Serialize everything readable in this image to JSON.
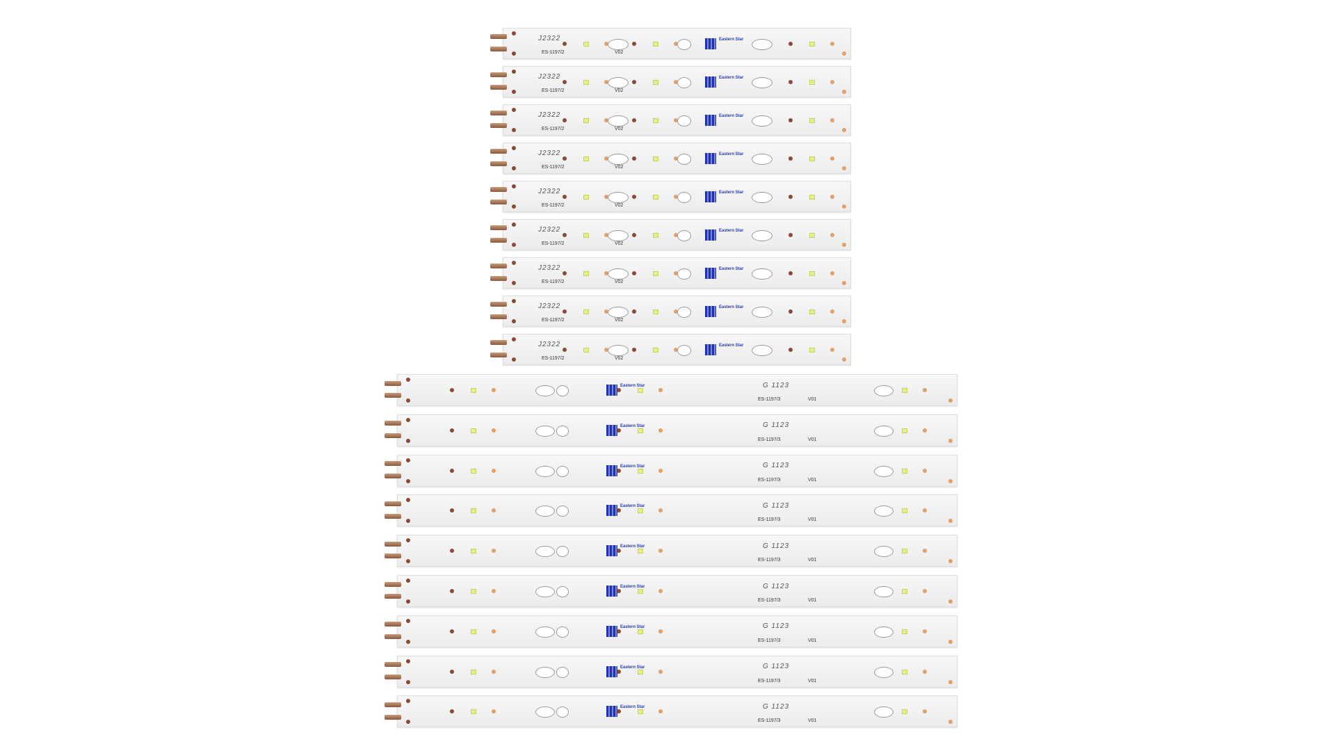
{
  "strip_upper": {
    "count": 9,
    "lot": "J2322",
    "model": "ES-1197/2",
    "version": "V02",
    "brand": "Eastern Star"
  },
  "strip_lower": {
    "count": 9,
    "lot": "G 1123",
    "model": "ES-1197/3",
    "version": "V01",
    "brand": "Eastern Star"
  },
  "colors": {
    "board": "#f2f2f2",
    "led": "#e6ef8a",
    "pad": "#8b4a36",
    "qr": "#2233aa"
  }
}
